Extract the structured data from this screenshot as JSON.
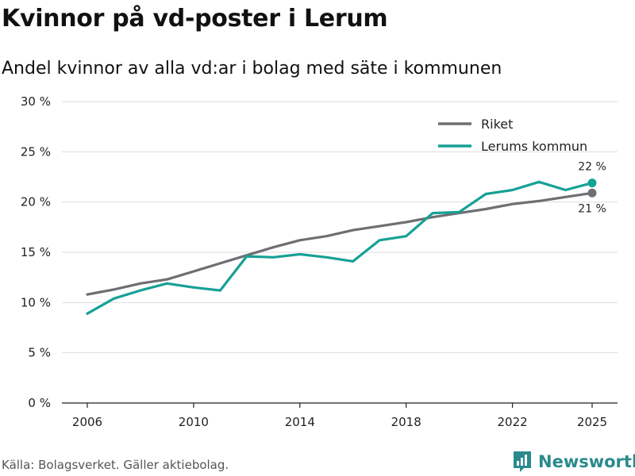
{
  "header": {
    "title": "Kvinnor på vd-poster i Lerum",
    "subtitle": "Andel kvinnor av alla vd:ar i bolag med säte i kommunen"
  },
  "footer": {
    "source": "Källa: Bolagsverket. Gäller aktiebolag.",
    "brand": "Newsworthy"
  },
  "colors": {
    "riket": "#6e6e73",
    "lerum": "#16a196",
    "grid": "#dddddd",
    "axis": "#222222",
    "brand": "#2a8a8c"
  },
  "icons": {
    "brand_logo": "newsworthy-logo-icon"
  },
  "chart_data": {
    "type": "line",
    "title": "Kvinnor på vd-poster i Lerum",
    "subtitle": "Andel kvinnor av alla vd:ar i bolag med säte i kommunen",
    "xlabel": "",
    "ylabel": "",
    "x": [
      2006,
      2007,
      2008,
      2009,
      2010,
      2011,
      2012,
      2013,
      2014,
      2015,
      2016,
      2017,
      2018,
      2019,
      2020,
      2021,
      2022,
      2023,
      2024,
      2025
    ],
    "xlim": [
      2006,
      2025
    ],
    "ylim": [
      0,
      30
    ],
    "x_ticks": [
      2006,
      2010,
      2014,
      2018,
      2022,
      2025
    ],
    "y_ticks": [
      0,
      5,
      10,
      15,
      20,
      25,
      30
    ],
    "y_tick_labels": [
      "0 %",
      "5 %",
      "10 %",
      "15 %",
      "20 %",
      "25 %",
      "30 %"
    ],
    "grid": true,
    "legend_position": "top-right",
    "series": [
      {
        "name": "Riket",
        "values": [
          10.8,
          11.3,
          11.9,
          12.3,
          13.1,
          13.9,
          14.7,
          15.5,
          16.2,
          16.6,
          17.2,
          17.6,
          18.0,
          18.5,
          18.9,
          19.3,
          19.8,
          20.1,
          20.5,
          20.9
        ],
        "end_label": "21 %"
      },
      {
        "name": "Lerums kommun",
        "values": [
          8.9,
          10.4,
          11.2,
          11.9,
          11.5,
          11.2,
          14.6,
          14.5,
          14.8,
          14.5,
          14.1,
          16.2,
          16.6,
          18.9,
          19.0,
          20.8,
          21.2,
          22.0,
          21.2,
          21.9
        ],
        "end_label": "22 %"
      }
    ]
  }
}
